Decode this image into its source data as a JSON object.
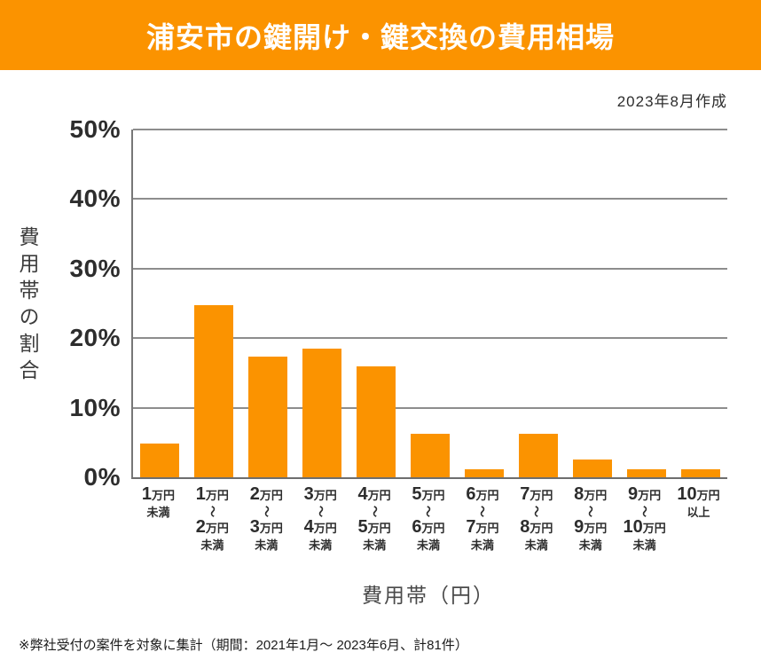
{
  "header": {
    "title": "浦安市の鍵開け・鍵交換の費用相場",
    "bg_color": "#FB9300",
    "text_color": "#FFFFFF"
  },
  "meta": {
    "created_label": "2023年8月作成"
  },
  "chart_data": {
    "type": "bar",
    "title": "浦安市の鍵開け・鍵交換の費用相場",
    "ylabel": "費用帯の割合",
    "xlabel": "費用帯（円）",
    "ylim": [
      0,
      50
    ],
    "ytick_labels": [
      "50%",
      "40%",
      "30%",
      "20%",
      "10%",
      "0%"
    ],
    "grid": true,
    "legend": false,
    "bar_color": "#FB9300",
    "categories": [
      {
        "from_num": "1",
        "from_unit": "万円",
        "connector": null,
        "to_num": null,
        "to_unit": null,
        "qualifier": "未満"
      },
      {
        "from_num": "1",
        "from_unit": "万円",
        "connector": "〜",
        "to_num": "2",
        "to_unit": "万円",
        "qualifier": "未満"
      },
      {
        "from_num": "2",
        "from_unit": "万円",
        "connector": "〜",
        "to_num": "3",
        "to_unit": "万円",
        "qualifier": "未満"
      },
      {
        "from_num": "3",
        "from_unit": "万円",
        "connector": "〜",
        "to_num": "4",
        "to_unit": "万円",
        "qualifier": "未満"
      },
      {
        "from_num": "4",
        "from_unit": "万円",
        "connector": "〜",
        "to_num": "5",
        "to_unit": "万円",
        "qualifier": "未満"
      },
      {
        "from_num": "5",
        "from_unit": "万円",
        "connector": "〜",
        "to_num": "6",
        "to_unit": "万円",
        "qualifier": "未満"
      },
      {
        "from_num": "6",
        "from_unit": "万円",
        "connector": "〜",
        "to_num": "7",
        "to_unit": "万円",
        "qualifier": "未満"
      },
      {
        "from_num": "7",
        "from_unit": "万円",
        "connector": "〜",
        "to_num": "8",
        "to_unit": "万円",
        "qualifier": "未満"
      },
      {
        "from_num": "8",
        "from_unit": "万円",
        "connector": "〜",
        "to_num": "9",
        "to_unit": "万円",
        "qualifier": "未満"
      },
      {
        "from_num": "9",
        "from_unit": "万円",
        "connector": "〜",
        "to_num": "10",
        "to_unit": "万円",
        "qualifier": "未満"
      },
      {
        "from_num": "10",
        "from_unit": "万円",
        "connector": null,
        "to_num": null,
        "to_unit": null,
        "qualifier": "以上"
      }
    ],
    "values": [
      4.9,
      24.7,
      17.3,
      18.5,
      16.0,
      6.2,
      1.2,
      6.2,
      2.5,
      1.2,
      1.2
    ]
  },
  "footnote": {
    "text": "※弊社受付の案件を対象に集計（期間：2021年1月～ 2023年6月、計81件）"
  }
}
